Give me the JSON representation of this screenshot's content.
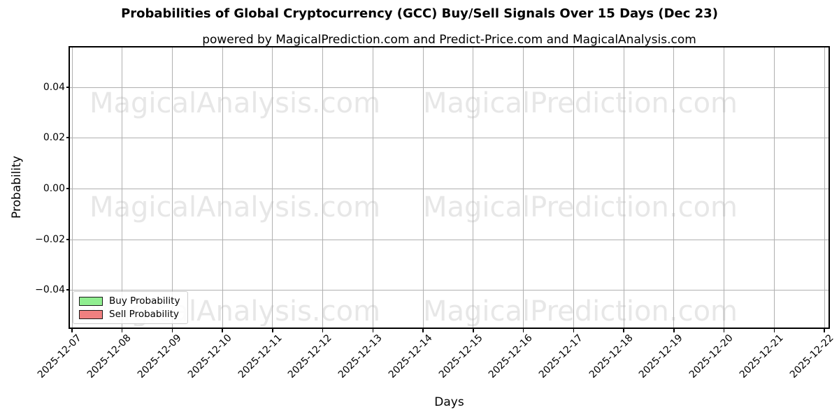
{
  "chart_data": {
    "type": "line",
    "title": "Probabilities of Global Cryptocurrency (GCC) Buy/Sell Signals Over 15 Days (Dec 23)",
    "subtitle": "powered by MagicalPrediction.com and Predict-Price.com and MagicalAnalysis.com",
    "xlabel": "Days",
    "ylabel": "Probability",
    "x_tick_labels": [
      "2025-12-07",
      "2025-12-08",
      "2025-12-09",
      "2025-12-10",
      "2025-12-11",
      "2025-12-12",
      "2025-12-13",
      "2025-12-14",
      "2025-12-15",
      "2025-12-16",
      "2025-12-17",
      "2025-12-18",
      "2025-12-19",
      "2025-12-20",
      "2025-12-21",
      "2025-12-22"
    ],
    "y_tick_labels": [
      "0.04",
      "0.02",
      "0.00",
      "−0.02",
      "−0.04"
    ],
    "ylim": [
      -0.055,
      0.056
    ],
    "grid": true,
    "legend": {
      "position": "lower left",
      "entries": [
        {
          "label": "Buy Probability",
          "color": "#90EE90"
        },
        {
          "label": "Sell Probability",
          "color": "#F08080"
        }
      ]
    },
    "series": [
      {
        "name": "Buy Probability",
        "color": "#90EE90",
        "values": []
      },
      {
        "name": "Sell Probability",
        "color": "#F08080",
        "values": []
      }
    ],
    "watermarks": {
      "texts": [
        "MagicalAnalysis.com",
        "MagicalPrediction.com"
      ],
      "color": "#e7e7e7"
    }
  },
  "colors": {
    "spine": "#000000",
    "grid": "#b0b0b0",
    "background": "#ffffff"
  }
}
